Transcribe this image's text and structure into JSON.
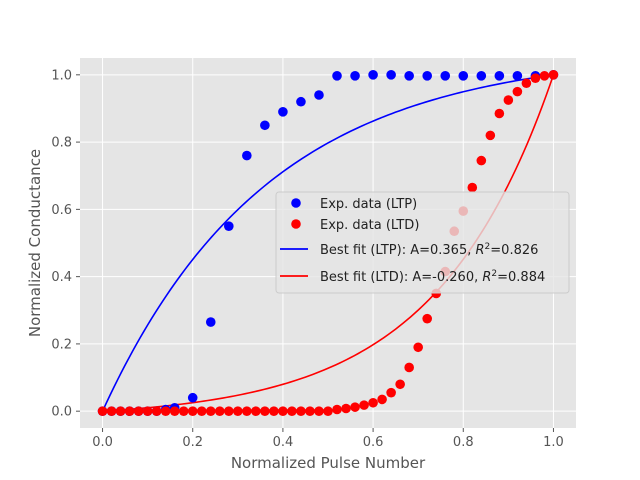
{
  "chart_data": {
    "type": "scatter",
    "xlabel": "Normalized Pulse Number",
    "ylabel": "Normalized Conductance",
    "xlim": [
      -0.05,
      1.05
    ],
    "ylim": [
      -0.05,
      1.05
    ],
    "xticks": [
      0.0,
      0.2,
      0.4,
      0.6,
      0.8,
      1.0
    ],
    "yticks": [
      0.0,
      0.2,
      0.4,
      0.6,
      0.8,
      1.0
    ],
    "xtick_labels": [
      "0.0",
      "0.2",
      "0.4",
      "0.6",
      "0.8",
      "1.0"
    ],
    "ytick_labels": [
      "0.0",
      "0.2",
      "0.4",
      "0.6",
      "0.8",
      "1.0"
    ],
    "grid": true,
    "legend_position": "center-right",
    "series": [
      {
        "name": "Exp. data (LTP)",
        "kind": "scatter",
        "color": "#0000ff",
        "x": [
          0.0,
          0.02,
          0.04,
          0.06,
          0.08,
          0.1,
          0.12,
          0.14,
          0.16,
          0.2,
          0.24,
          0.28,
          0.32,
          0.36,
          0.4,
          0.44,
          0.48,
          0.52,
          0.56,
          0.6,
          0.64,
          0.68,
          0.72,
          0.76,
          0.8,
          0.84,
          0.88,
          0.92,
          0.96,
          1.0
        ],
        "y": [
          0.0,
          0.0,
          0.0,
          0.0,
          0.0,
          0.0,
          0.0,
          0.005,
          0.01,
          0.04,
          0.265,
          0.55,
          0.76,
          0.85,
          0.89,
          0.92,
          0.94,
          0.997,
          0.997,
          1.0,
          1.0,
          0.997,
          0.997,
          0.997,
          0.997,
          0.997,
          0.997,
          0.997,
          0.997,
          1.0
        ]
      },
      {
        "name": "Exp. data (LTD)",
        "kind": "scatter",
        "color": "#ff0000",
        "x": [
          0.0,
          0.02,
          0.04,
          0.06,
          0.08,
          0.1,
          0.12,
          0.14,
          0.16,
          0.18,
          0.2,
          0.22,
          0.24,
          0.26,
          0.28,
          0.3,
          0.32,
          0.34,
          0.36,
          0.38,
          0.4,
          0.42,
          0.44,
          0.46,
          0.48,
          0.5,
          0.52,
          0.54,
          0.56,
          0.58,
          0.6,
          0.62,
          0.64,
          0.66,
          0.68,
          0.7,
          0.72,
          0.74,
          0.76,
          0.78,
          0.8,
          0.82,
          0.84,
          0.86,
          0.88,
          0.9,
          0.92,
          0.94,
          0.96,
          0.98,
          1.0
        ],
        "y": [
          0.0,
          0.0,
          0.0,
          0.0,
          0.0,
          0.0,
          0.0,
          0.0,
          0.0,
          0.0,
          0.0,
          0.0,
          0.0,
          0.0,
          0.0,
          0.0,
          0.0,
          0.0,
          0.0,
          0.0,
          0.0,
          0.0,
          0.0,
          0.0,
          0.0,
          0.0,
          0.005,
          0.008,
          0.012,
          0.018,
          0.025,
          0.035,
          0.055,
          0.08,
          0.13,
          0.19,
          0.275,
          0.35,
          0.415,
          0.535,
          0.595,
          0.665,
          0.745,
          0.82,
          0.885,
          0.925,
          0.95,
          0.975,
          0.99,
          0.997,
          1.0
        ]
      },
      {
        "name": "Best fit (LTP): A=0.365, R²=0.826",
        "legend_prefix": "Best fit (LTP): A=0.365, ",
        "legend_r2_value": "=0.826",
        "kind": "line",
        "color": "#0000ff",
        "A": 0.365
      },
      {
        "name": "Best fit (LTD): A=-0.260, R²=0.884",
        "legend_prefix": "Best fit (LTD): A=-0.260, ",
        "legend_r2_value": "=0.884",
        "kind": "line",
        "color": "#ff0000",
        "A": -0.26
      }
    ]
  }
}
